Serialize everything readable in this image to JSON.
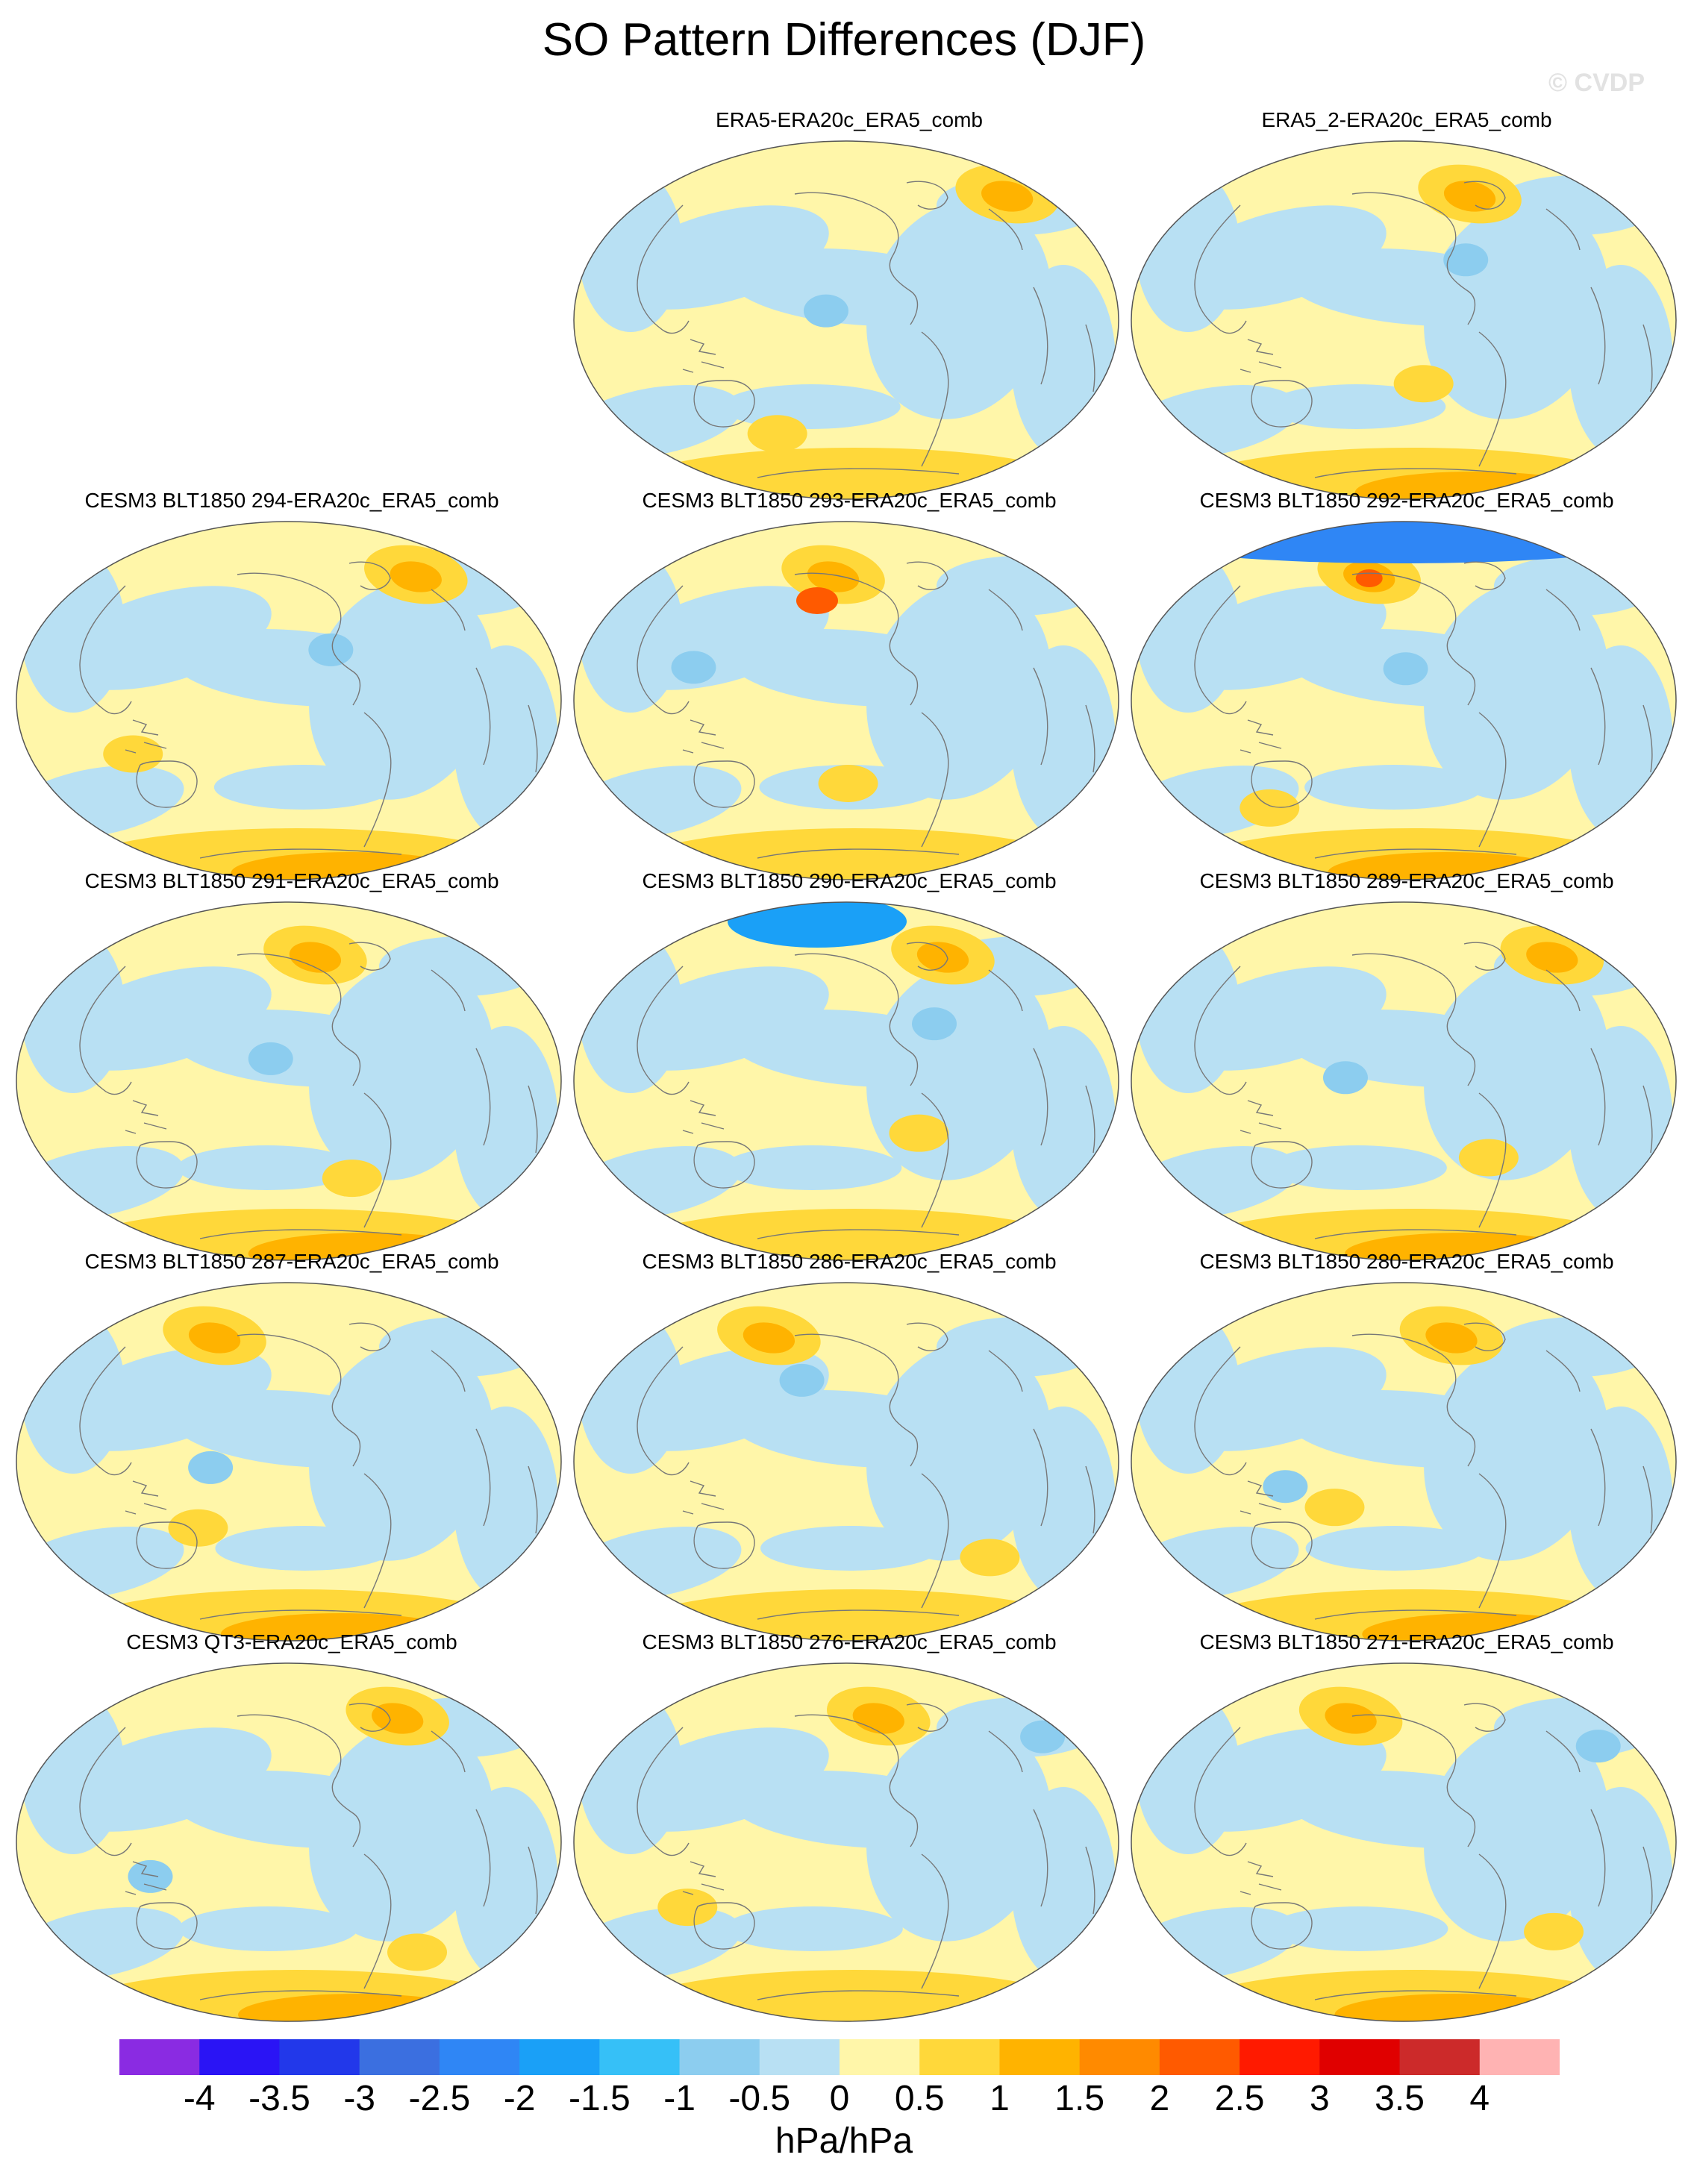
{
  "chart_data": {
    "type": "heatmap",
    "title": "SO Pattern Differences (DJF)",
    "watermark": "© CVDP",
    "units": "hPa/hPa",
    "projection": "Robinson (Pacific-centered)",
    "colorbar": {
      "ticks": [
        "-4",
        "-3.5",
        "-3",
        "-2.5",
        "-2",
        "-1.5",
        "-1",
        "-0.5",
        "0",
        "0.5",
        "1",
        "1.5",
        "2",
        "2.5",
        "3",
        "3.5",
        "4"
      ],
      "colors": [
        "#8a2be2",
        "#2a14f5",
        "#2238ea",
        "#3b6fe0",
        "#2f86f5",
        "#1aa0f7",
        "#36c0f7",
        "#8ccdef",
        "#b8e0f3",
        "#fff6a9",
        "#ffd83a",
        "#ffb300",
        "#ff8a00",
        "#ff5a00",
        "#ff1a00",
        "#e00000",
        "#cc2a2a",
        "#ffb3b3"
      ]
    },
    "panels": [
      {
        "title": "ERA5-ERA20c_ERA5_comb",
        "row": 0,
        "col": 1
      },
      {
        "title": "ERA5_2-ERA20c_ERA5_comb",
        "row": 0,
        "col": 2
      },
      {
        "title": "CESM3 BLT1850 294-ERA20c_ERA5_comb",
        "row": 1,
        "col": 0
      },
      {
        "title": "CESM3 BLT1850 293-ERA20c_ERA5_comb",
        "row": 1,
        "col": 1
      },
      {
        "title": "CESM3 BLT1850 292-ERA20c_ERA5_comb",
        "row": 1,
        "col": 2
      },
      {
        "title": "CESM3 BLT1850 291-ERA20c_ERA5_comb",
        "row": 2,
        "col": 0
      },
      {
        "title": "CESM3 BLT1850 290-ERA20c_ERA5_comb",
        "row": 2,
        "col": 1
      },
      {
        "title": "CESM3 BLT1850 289-ERA20c_ERA5_comb",
        "row": 2,
        "col": 2
      },
      {
        "title": "CESM3 BLT1850 287-ERA20c_ERA5_comb",
        "row": 3,
        "col": 0
      },
      {
        "title": "CESM3 BLT1850 286-ERA20c_ERA5_comb",
        "row": 3,
        "col": 1
      },
      {
        "title": "CESM3 BLT1850 280-ERA20c_ERA5_comb",
        "row": 3,
        "col": 2
      },
      {
        "title": "CESM3 QT3-ERA20c_ERA5_comb",
        "row": 4,
        "col": 0
      },
      {
        "title": "CESM3 BLT1850 276-ERA20c_ERA5_comb",
        "row": 4,
        "col": 1
      },
      {
        "title": "CESM3 BLT1850 271-ERA20c_ERA5_comb",
        "row": 4,
        "col": 2
      }
    ]
  }
}
